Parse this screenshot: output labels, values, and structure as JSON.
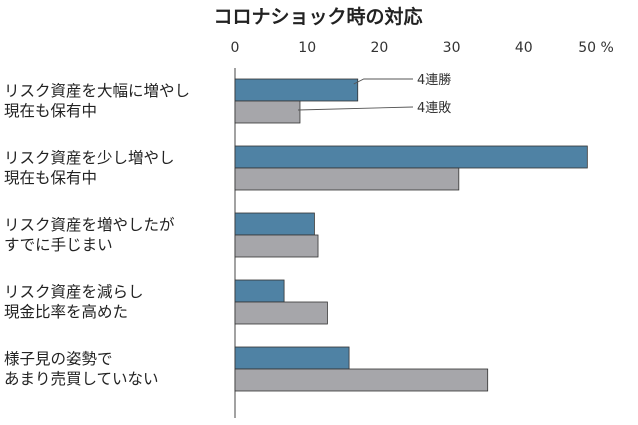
{
  "chart_data": {
    "type": "bar",
    "orientation": "horizontal",
    "title": "コロナショック時の対応",
    "unit": "%",
    "xlim": [
      0,
      50
    ],
    "ticks": [
      0,
      10,
      20,
      30,
      40,
      50
    ],
    "categories": [
      [
        "リスク資産を大幅に増やし",
        "現在も保有中"
      ],
      [
        "リスク資産を少し増やし",
        "現在も保有中"
      ],
      [
        "リスク資産を増やしたが",
        "すでに手じまい"
      ],
      [
        "リスク資産を減らし",
        "現金比率を高めた"
      ],
      [
        "様子見の姿勢で",
        "あまり売買していない"
      ]
    ],
    "series": [
      {
        "name": "4連勝",
        "color": "#4f82a4",
        "values": [
          17.0,
          48.8,
          11.0,
          6.8,
          15.8
        ]
      },
      {
        "name": "4連敗",
        "color": "#a6a6aa",
        "values": [
          9.0,
          31.0,
          11.5,
          12.8,
          35.0
        ]
      }
    ],
    "legend": "inline-leader-lines",
    "grid": false
  }
}
